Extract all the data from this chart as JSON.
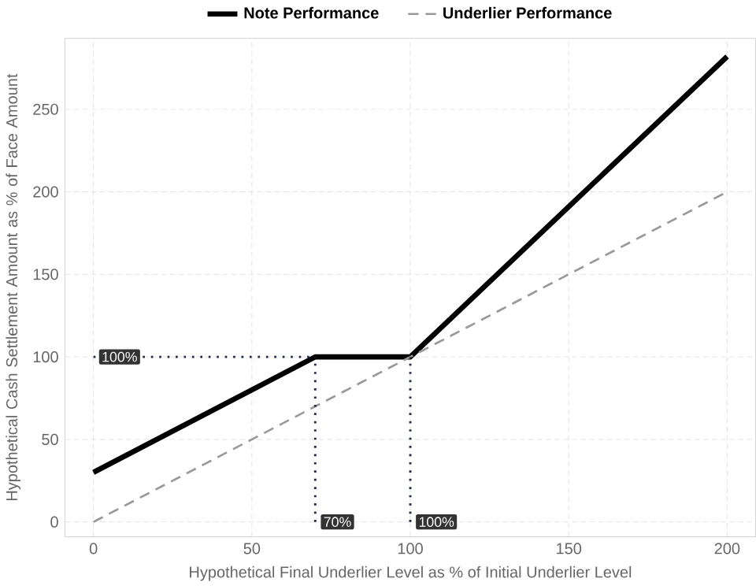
{
  "chart_data": {
    "type": "line",
    "xlabel": "Hypothetical Final Underlier Level as % of Initial Underlier Level",
    "ylabel": "Hypothetical Cash Settlement Amount as % of Face Amount",
    "xlim": [
      -9,
      209
    ],
    "ylim": [
      -9,
      293
    ],
    "xticks": [
      0,
      50,
      100,
      150,
      200
    ],
    "yticks": [
      0,
      50,
      100,
      150,
      200,
      250
    ],
    "grid": true,
    "legend": "top",
    "marker": "none",
    "series": [
      {
        "name": "Note Performance",
        "color": "#000000",
        "line_style": "solid",
        "x": [
          0,
          70,
          100,
          200
        ],
        "values": [
          30,
          100,
          100,
          282
        ]
      },
      {
        "name": "Underlier Performance",
        "color": "#999999",
        "line_style": "dashed",
        "x": [
          0,
          200
        ],
        "values": [
          0,
          200
        ]
      },
      {
        "color": "#1f2a44",
        "line_style": "dotted",
        "x": [
          0,
          70
        ],
        "values": [
          100,
          100
        ]
      },
      {
        "color": "#1f2a44",
        "line_style": "dotted",
        "x": [
          70,
          70
        ],
        "values": [
          0,
          100
        ]
      },
      {
        "color": "#1f2a44",
        "line_style": "dotted",
        "x": [
          100,
          100
        ],
        "values": [
          0,
          100
        ]
      }
    ],
    "annotations": [
      {
        "text": "100%",
        "x": 0,
        "y": 100
      },
      {
        "text": "70%",
        "x": 70,
        "y": 0
      },
      {
        "text": "100%",
        "x": 100,
        "y": 0
      }
    ]
  }
}
